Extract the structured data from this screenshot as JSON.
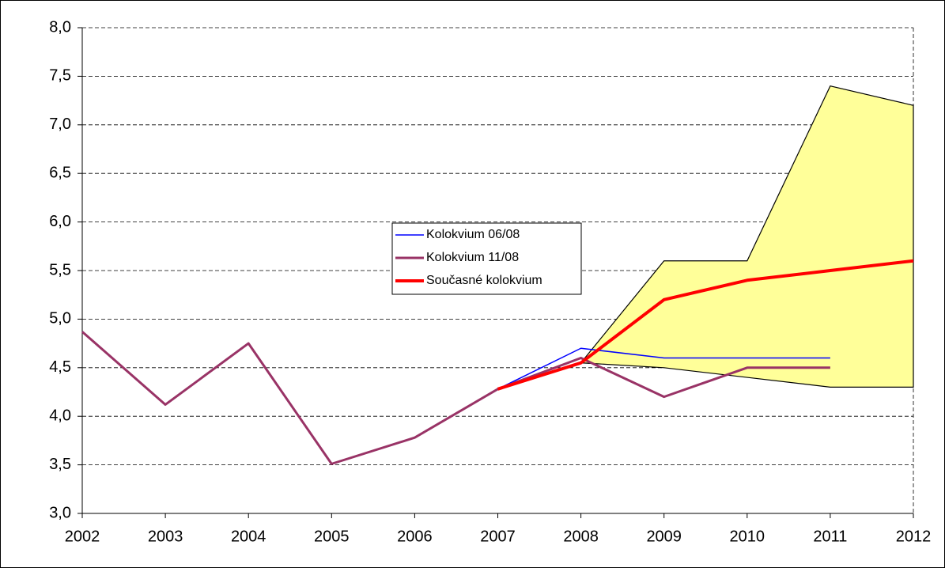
{
  "chart_data": {
    "type": "line",
    "categories": [
      "2002",
      "2003",
      "2004",
      "2005",
      "2006",
      "2007",
      "2008",
      "2009",
      "2010",
      "2011",
      "2012"
    ],
    "ylim": [
      3.0,
      8.0
    ],
    "yticks": [
      {
        "value": 3.0,
        "label": "3,0"
      },
      {
        "value": 3.5,
        "label": "3,5"
      },
      {
        "value": 4.0,
        "label": "4,0"
      },
      {
        "value": 4.5,
        "label": "4,5"
      },
      {
        "value": 5.0,
        "label": "5,0"
      },
      {
        "value": 5.5,
        "label": "5,5"
      },
      {
        "value": 6.0,
        "label": "6,0"
      },
      {
        "value": 6.5,
        "label": "6,5"
      },
      {
        "value": 7.0,
        "label": "7,0"
      },
      {
        "value": 7.5,
        "label": "7,5"
      },
      {
        "value": 8.0,
        "label": "8,0"
      }
    ],
    "grid": true,
    "band": {
      "color": "#ffff99",
      "upper": [
        null,
        null,
        null,
        null,
        null,
        null,
        4.55,
        5.6,
        5.6,
        7.4,
        7.2
      ],
      "lower": [
        null,
        null,
        null,
        null,
        null,
        null,
        4.55,
        4.5,
        4.4,
        4.3,
        4.3
      ]
    },
    "series": [
      {
        "name": "Kolokvium 06/08",
        "color": "#0000ff",
        "width": 1.5,
        "values": [
          4.87,
          4.12,
          4.75,
          3.51,
          3.78,
          4.28,
          4.7,
          4.6,
          4.6,
          4.6,
          null
        ]
      },
      {
        "name": "Kolokvium 11/08",
        "color": "#993366",
        "width": 3,
        "values": [
          4.87,
          4.12,
          4.75,
          3.51,
          3.78,
          4.28,
          4.6,
          4.2,
          4.5,
          4.5,
          null
        ]
      },
      {
        "name": "Současné kolokvium",
        "color": "#ff0000",
        "width": 4,
        "values": [
          null,
          null,
          null,
          null,
          null,
          4.28,
          4.55,
          5.2,
          5.4,
          5.5,
          5.6
        ]
      }
    ]
  }
}
